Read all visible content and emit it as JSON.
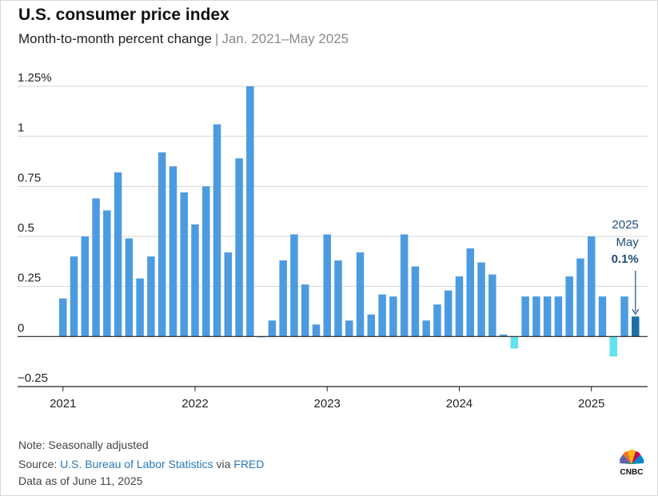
{
  "header": {
    "title": "U.S. consumer price index",
    "subtitle": "Month-to-month percent change",
    "separator": "|",
    "date_range": "Jan. 2021–May 2025"
  },
  "chart_data": {
    "type": "bar",
    "title": "U.S. consumer price index",
    "subtitle": "Month-to-month percent change | Jan. 2021–May 2025",
    "xlabel": "",
    "ylabel": "",
    "ylim": [
      -0.25,
      1.25
    ],
    "yticks": [
      {
        "value": 1.25,
        "label": "1.25%"
      },
      {
        "value": 1,
        "label": "1"
      },
      {
        "value": 0.75,
        "label": "0.75"
      },
      {
        "value": 0.5,
        "label": "0.5"
      },
      {
        "value": 0.25,
        "label": "0.25"
      },
      {
        "value": 0,
        "label": "0"
      },
      {
        "value": -0.25,
        "label": "−0.25"
      }
    ],
    "xticks": [
      {
        "index": 0,
        "label": "2021"
      },
      {
        "index": 12,
        "label": "2022"
      },
      {
        "index": 24,
        "label": "2023"
      },
      {
        "index": 36,
        "label": "2024"
      },
      {
        "index": 48,
        "label": "2025"
      }
    ],
    "grid": true,
    "colors": {
      "positive": "#4c9be0",
      "negative": "#5fe3ee",
      "highlight": "#1b6fa8",
      "annotation": "#1f4e79"
    },
    "categories": [
      "Jan 2021",
      "Feb 2021",
      "Mar 2021",
      "Apr 2021",
      "May 2021",
      "Jun 2021",
      "Jul 2021",
      "Aug 2021",
      "Sep 2021",
      "Oct 2021",
      "Nov 2021",
      "Dec 2021",
      "Jan 2022",
      "Feb 2022",
      "Mar 2022",
      "Apr 2022",
      "May 2022",
      "Jun 2022",
      "Jul 2022",
      "Aug 2022",
      "Sep 2022",
      "Oct 2022",
      "Nov 2022",
      "Dec 2022",
      "Jan 2023",
      "Feb 2023",
      "Mar 2023",
      "Apr 2023",
      "May 2023",
      "Jun 2023",
      "Jul 2023",
      "Aug 2023",
      "Sep 2023",
      "Oct 2023",
      "Nov 2023",
      "Dec 2023",
      "Jan 2024",
      "Feb 2024",
      "Mar 2024",
      "Apr 2024",
      "May 2024",
      "Jun 2024",
      "Jul 2024",
      "Aug 2024",
      "Sep 2024",
      "Oct 2024",
      "Nov 2024",
      "Dec 2024",
      "Jan 2025",
      "Feb 2025",
      "Mar 2025",
      "Apr 2025",
      "May 2025"
    ],
    "values": [
      0.19,
      0.4,
      0.5,
      0.69,
      0.63,
      0.82,
      0.49,
      0.29,
      0.4,
      0.92,
      0.85,
      0.72,
      0.56,
      0.75,
      1.06,
      0.42,
      0.89,
      1.25,
      0.0,
      0.08,
      0.38,
      0.51,
      0.26,
      0.06,
      0.51,
      0.38,
      0.08,
      0.42,
      0.11,
      0.21,
      0.2,
      0.51,
      0.35,
      0.08,
      0.16,
      0.23,
      0.3,
      0.44,
      0.37,
      0.31,
      0.01,
      -0.06,
      0.2,
      0.2,
      0.2,
      0.2,
      0.3,
      0.39,
      0.5,
      0.2,
      -0.1,
      0.2,
      0.1
    ],
    "highlight_index": 52,
    "annotation": {
      "year": "2025",
      "month": "May",
      "value": "0.1%"
    }
  },
  "footer": {
    "note": "Note: Seasonally adjusted",
    "source_prefix": "Source: ",
    "source_link": "U.S. Bureau of Labor Statistics",
    "via": " via ",
    "via_link": "FRED",
    "asof": "Data as of June 11, 2025",
    "logo_text": "CNBC"
  }
}
